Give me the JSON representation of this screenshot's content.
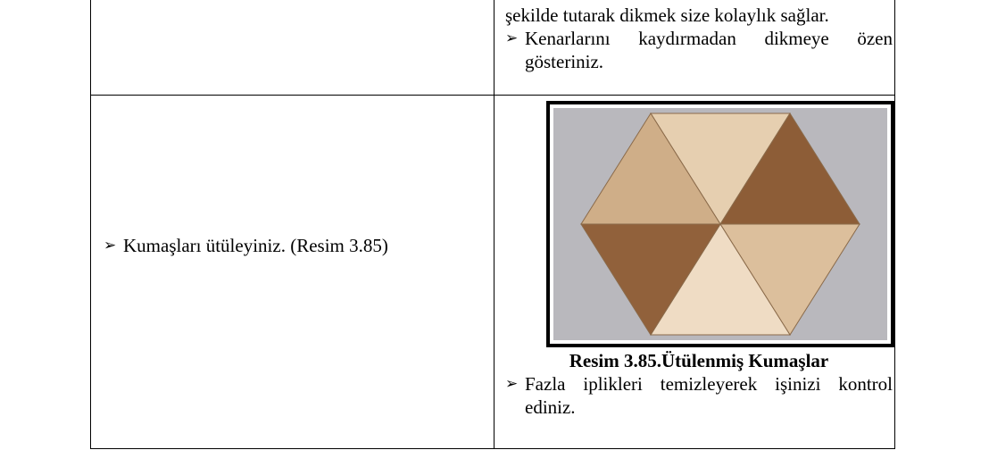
{
  "table": {
    "rows": [
      {
        "right": {
          "continuation": "şekilde tutarak dikmek size kolaylık sağlar.",
          "bullets": [
            "Kenarlarını kaydırmadan dikmeye özen gösteriniz."
          ]
        }
      },
      {
        "left": {
          "bullets": [
            "Kumaşları ütüleyiniz. (Resim 3.85)"
          ]
        },
        "right": {
          "caption": "Resim 3.85.Ütülenmiş Kumaşlar",
          "bullets": [
            "Fazla iplikleri temizleyerek işinizi kontrol ediniz."
          ]
        }
      }
    ]
  }
}
